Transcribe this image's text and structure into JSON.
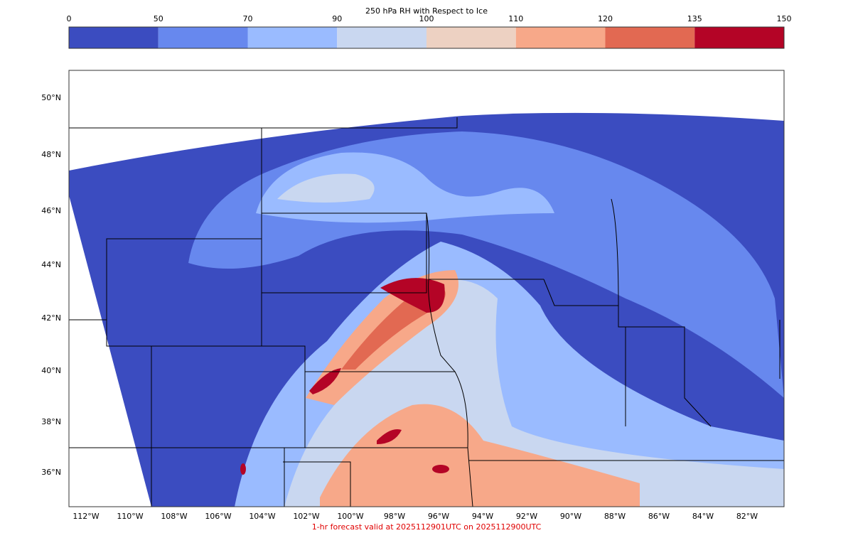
{
  "colorbar": {
    "title": "250 hPa RH with Respect to Ice",
    "ticks": [
      "0",
      "50",
      "70",
      "90",
      "100",
      "110",
      "120",
      "135",
      "150"
    ],
    "colors": [
      "#3b4cc0",
      "#6788ee",
      "#9abbff",
      "#c9d7f0",
      "#edd1c2",
      "#f7a889",
      "#e26952",
      "#b40426"
    ]
  },
  "map": {
    "lat_labels": [
      "50°N",
      "48°N",
      "46°N",
      "44°N",
      "42°N",
      "40°N",
      "38°N",
      "36°N"
    ],
    "lon_labels": [
      "112°W",
      "110°W",
      "108°W",
      "106°W",
      "104°W",
      "102°W",
      "100°W",
      "98°W",
      "96°W",
      "94°W",
      "92°W",
      "90°W",
      "88°W",
      "86°W",
      "84°W",
      "82°W"
    ]
  },
  "footer": "1-hr forecast valid at 2025112901UTC on 2025112900UTC"
}
